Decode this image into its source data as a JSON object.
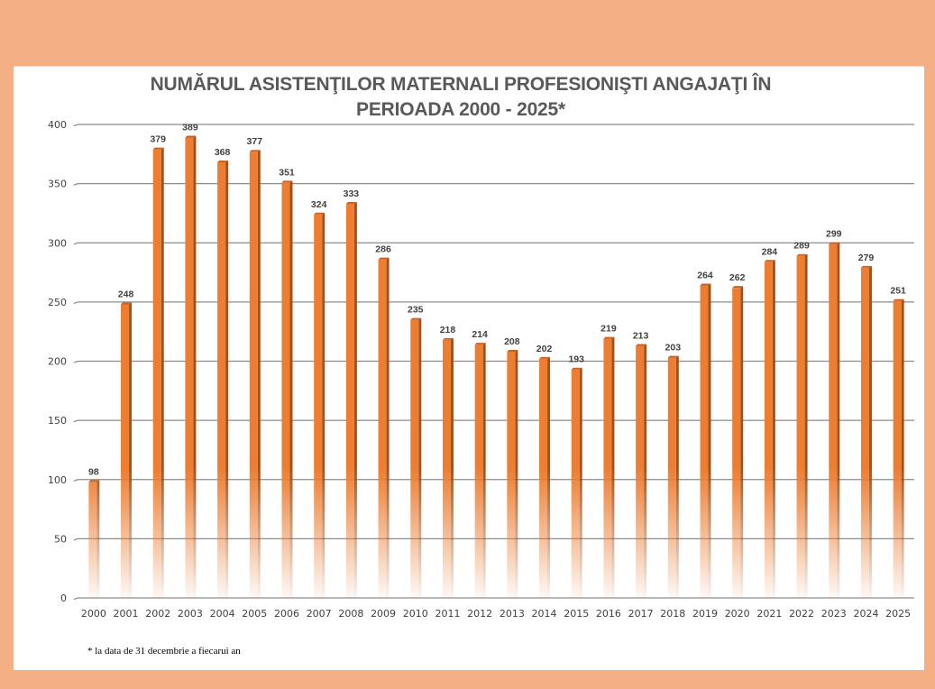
{
  "colors": {
    "background": "#F4AF84",
    "bar_face": "#ED7D31",
    "bar_side": "#A4501B",
    "grid": "#8c8c8c",
    "title": "#595959",
    "label": "#404040"
  },
  "chart_data": {
    "type": "bar",
    "title_line1": "NUMĂRUL ASISTENŢILOR MATERNALI PROFESIONIŞTI ANGAJAŢI ÎN",
    "title_line2": "PERIOADA 2000 - 2025*",
    "xlabel": "",
    "ylabel": "",
    "ylim": [
      0,
      400
    ],
    "yticks": [
      0,
      50,
      100,
      150,
      200,
      250,
      300,
      350,
      400
    ],
    "grid": true,
    "legend": "none",
    "categories": [
      "2000",
      "2001",
      "2002",
      "2003",
      "2004",
      "2005",
      "2006",
      "2007",
      "2008",
      "2009",
      "2010",
      "2011",
      "2012",
      "2013",
      "2014",
      "2015",
      "2016",
      "2017",
      "2018",
      "2019",
      "2020",
      "2021",
      "2022",
      "2023",
      "2024",
      "2025"
    ],
    "values": [
      98,
      248,
      379,
      389,
      368,
      377,
      351,
      324,
      333,
      286,
      235,
      218,
      214,
      208,
      202,
      193,
      219,
      213,
      203,
      264,
      262,
      284,
      289,
      299,
      279,
      251
    ],
    "footnote": "* la data de 31 decembrie  a fiecarui an"
  }
}
